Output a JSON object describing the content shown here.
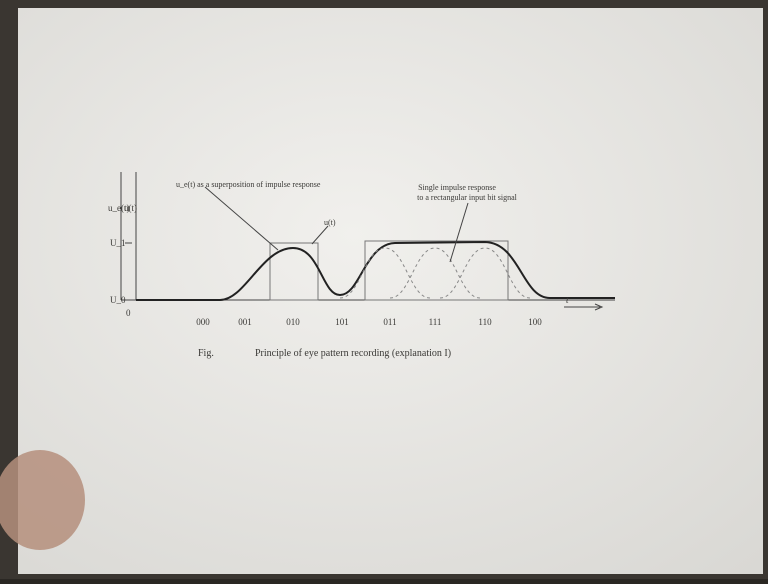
{
  "figure": {
    "axis_labels": {
      "ue": "u_e(t)",
      "u": "u(t)",
      "level_high": "U_1",
      "level_low": "U_0",
      "origin": "0",
      "time": "t"
    },
    "annotations": {
      "superposition": "u_e(t) as a superposition of impulse response",
      "input": "u(t)",
      "single_impulse_line1": "Single impulse response",
      "single_impulse_line2": "to a rectangular input bit signal"
    },
    "bit_labels": [
      "000",
      "001",
      "010",
      "101",
      "011",
      "111",
      "110",
      "100"
    ],
    "caption": {
      "prefix": "Fig.",
      "text": "Principle of eye pattern recording (explanation I)"
    }
  }
}
